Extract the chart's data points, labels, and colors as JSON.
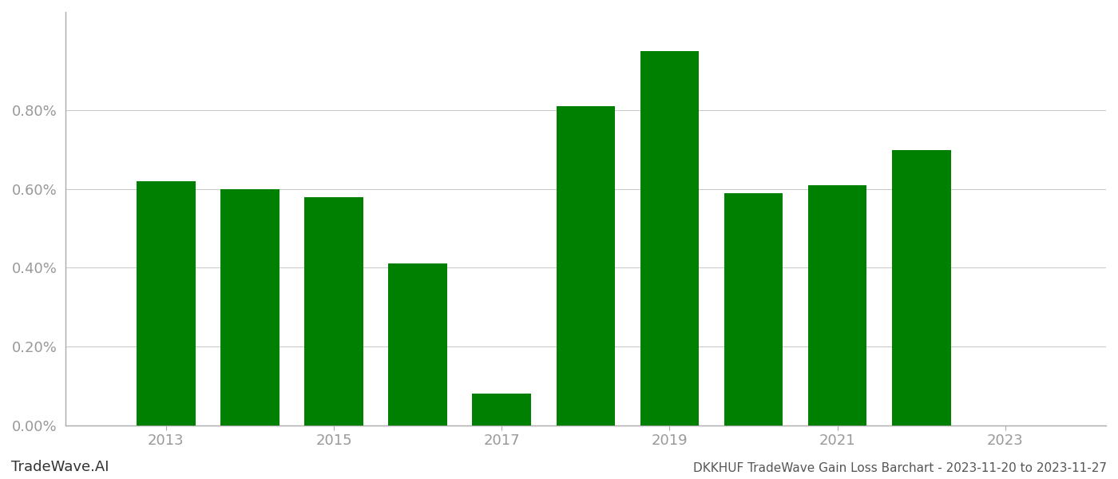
{
  "years": [
    2013,
    2014,
    2015,
    2016,
    2017,
    2018,
    2019,
    2020,
    2021,
    2022
  ],
  "values": [
    0.0062,
    0.006,
    0.0058,
    0.0041,
    0.0008,
    0.0081,
    0.0095,
    0.0059,
    0.0061,
    0.007
  ],
  "bar_color": "#008000",
  "background_color": "#ffffff",
  "ylim": [
    0,
    0.0105
  ],
  "yticks": [
    0.0,
    0.002,
    0.004,
    0.006,
    0.008
  ],
  "ytick_labels": [
    "0.00%",
    "0.20%",
    "0.40%",
    "0.60%",
    "0.80%"
  ],
  "xlabel_years": [
    2013,
    2015,
    2017,
    2019,
    2021,
    2023
  ],
  "footer_left": "TradeWave.AI",
  "footer_right": "DKKHUF TradeWave Gain Loss Barchart - 2023-11-20 to 2023-11-27",
  "grid_color": "#cccccc",
  "tick_color": "#999999",
  "spine_color": "#aaaaaa",
  "xlim_left": 2011.8,
  "xlim_right": 2024.2,
  "bar_width": 0.7
}
